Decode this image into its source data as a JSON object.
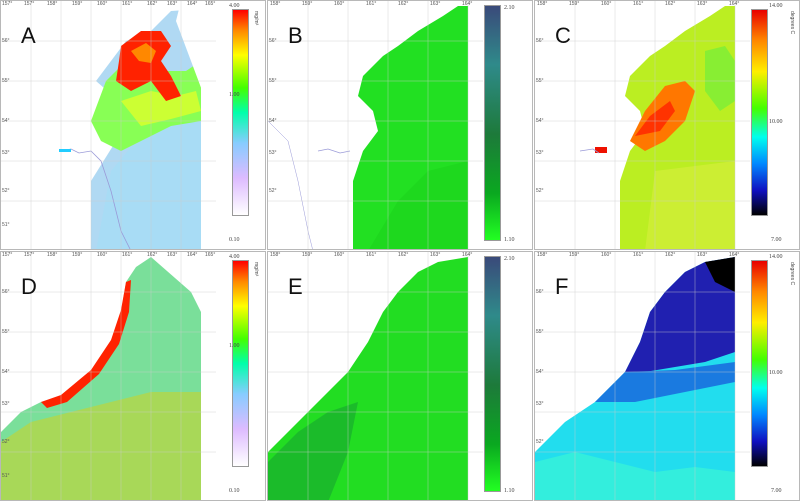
{
  "panels": [
    {
      "letter": "A",
      "colorbar": "chl",
      "cb_top": "4.00",
      "cb_mid": "1.00",
      "cb_bot": "0.10",
      "unit": "mg/m³"
    },
    {
      "letter": "B",
      "colorbar": "ratio",
      "cb_top": "2.10",
      "cb_mid": "",
      "cb_bot": "1.10",
      "unit": ""
    },
    {
      "letter": "C",
      "colorbar": "sst",
      "cb_top": "14.00",
      "cb_mid": "10.00",
      "cb_bot": "7.00",
      "unit": "degrees C"
    },
    {
      "letter": "D",
      "colorbar": "chl",
      "cb_top": "4.00",
      "cb_mid": "1.00",
      "cb_bot": "0.10",
      "unit": "mg/m³"
    },
    {
      "letter": "E",
      "colorbar": "ratio",
      "cb_top": "2.10",
      "cb_mid": "",
      "cb_bot": "1.10",
      "unit": ""
    },
    {
      "letter": "F",
      "colorbar": "sst",
      "cb_top": "14.00",
      "cb_mid": "10.00",
      "cb_bot": "7.00",
      "unit": "degrees C"
    }
  ],
  "lon_ticks_a": [
    "157°",
    "157°",
    "158°",
    "159°",
    "160°",
    "161°",
    "162°",
    "163°",
    "164°",
    "165°"
  ],
  "lon_ticks_b": [
    "158°",
    "159°",
    "160°",
    "161°",
    "162°",
    "163°",
    "164°"
  ],
  "lat_ticks": [
    "56°",
    "55°",
    "54°",
    "53°",
    "52°",
    "51°"
  ],
  "colors": {
    "chl_gradient": [
      "#ff0000",
      "#ff8800",
      "#ffff00",
      "#44ff00",
      "#00ffaa",
      "#88ccff",
      "#ddbbff",
      "#ffffff"
    ],
    "ratio_gradient": [
      "#3a4a7a",
      "#2f8a8a",
      "#1d7a3a",
      "#0aa820",
      "#22ff22"
    ],
    "sst_gradient": [
      "#e80000",
      "#ff8800",
      "#ffee00",
      "#44ff00",
      "#00ffee",
      "#0088ff",
      "#1010c0",
      "#000000"
    ]
  }
}
